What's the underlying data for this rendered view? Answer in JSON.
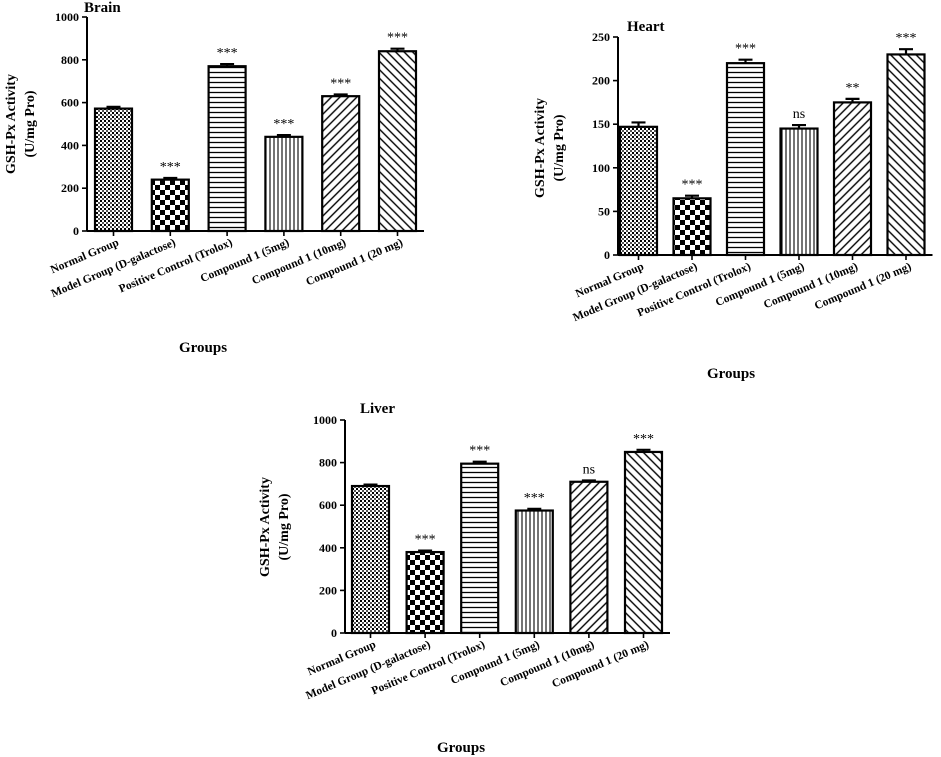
{
  "chart_data": [
    {
      "type": "bar",
      "title": "Brain",
      "xlabel": "Groups",
      "ylabel": [
        "GSH-Px Activity",
        "(U/mg Pro)"
      ],
      "ylim": [
        0,
        1000
      ],
      "yticks": [
        0,
        200,
        400,
        600,
        800,
        1000
      ],
      "categories": [
        "Normal Group",
        "Model Group (D-galactose)",
        "Positive Control (Trolox)",
        "Compound 1 (5mg)",
        "Compound 1 (10mg)",
        "Compound 1 (20 mg)"
      ],
      "values": [
        572,
        240,
        770,
        440,
        630,
        840
      ],
      "errors": [
        8,
        8,
        10,
        8,
        8,
        12
      ],
      "significance": [
        "",
        "***",
        "***",
        "***",
        "***",
        "***"
      ],
      "patterns": [
        "dots",
        "checker",
        "hlines",
        "vlines",
        "diag-up",
        "diag-down"
      ]
    },
    {
      "type": "bar",
      "title": "Heart",
      "xlabel": "Groups",
      "ylabel": [
        "GSH-Px Activity",
        "(U/mg Pro)"
      ],
      "ylim": [
        0,
        250
      ],
      "yticks": [
        0,
        50,
        100,
        150,
        200,
        250
      ],
      "categories": [
        "Normal Group",
        "Model Group (D-galactose)",
        "Positive Control (Trolox)",
        "Compound 1 (5mg)",
        "Compound 1 (10mg)",
        "Compound 1 (20 mg)"
      ],
      "values": [
        147,
        65,
        220,
        145,
        175,
        230
      ],
      "errors": [
        5,
        3,
        4,
        4,
        4,
        6
      ],
      "significance": [
        "",
        "***",
        "***",
        "ns",
        "**",
        "***"
      ],
      "patterns": [
        "dots",
        "checker",
        "hlines",
        "vlines",
        "diag-up",
        "diag-down"
      ]
    },
    {
      "type": "bar",
      "title": "Liver",
      "xlabel": "Groups",
      "ylabel": [
        "GSH-Px Activity",
        "(U/mg Pro)"
      ],
      "ylim": [
        0,
        1000
      ],
      "yticks": [
        0,
        200,
        400,
        600,
        800,
        1000
      ],
      "categories": [
        "Normal Group",
        "Model Group (D-galactose)",
        "Positive Control (Trolox)",
        "Compound 1 (5mg)",
        "Compound 1 (10mg)",
        "Compound 1 (20 mg)"
      ],
      "values": [
        690,
        380,
        795,
        575,
        710,
        850
      ],
      "errors": [
        7,
        7,
        9,
        8,
        6,
        10
      ],
      "significance": [
        "",
        "***",
        "***",
        "***",
        "ns",
        "***"
      ],
      "patterns": [
        "dots",
        "checker",
        "hlines",
        "vlines",
        "diag-up",
        "diag-down"
      ]
    }
  ]
}
